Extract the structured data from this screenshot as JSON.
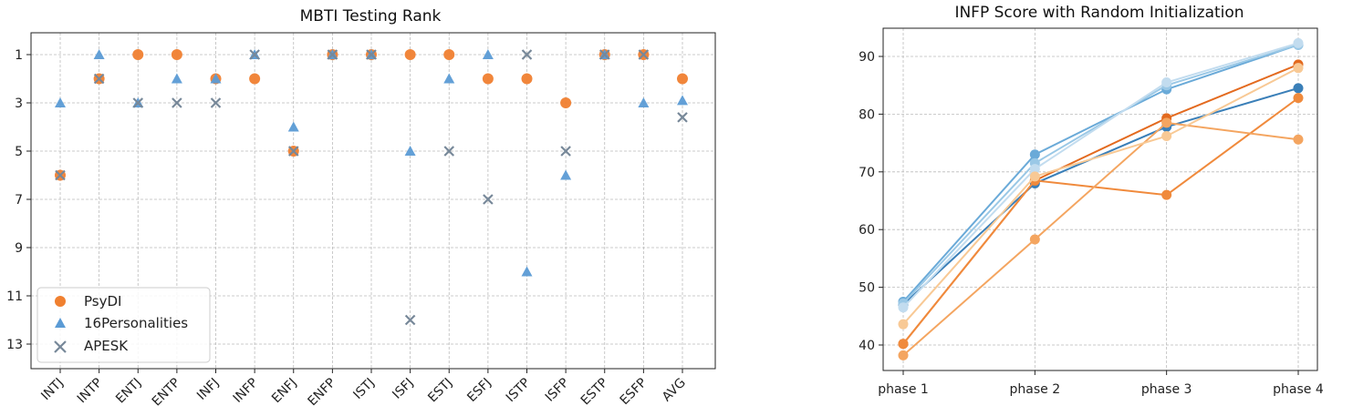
{
  "chart_data": [
    {
      "type": "scatter",
      "title": "MBTI Testing Rank",
      "categories": [
        "INTJ",
        "INTP",
        "ENTJ",
        "ENTP",
        "INFJ",
        "INFP",
        "ENFJ",
        "ENFP",
        "ISTJ",
        "ISFJ",
        "ESTJ",
        "ESFJ",
        "ISTP",
        "ISFP",
        "ESTP",
        "ESFP",
        "AVG"
      ],
      "yticks": [
        "1",
        "3",
        "5",
        "7",
        "9",
        "11",
        "13"
      ],
      "ylim": [
        14,
        0
      ],
      "y_inverted": true,
      "grid": true,
      "legend": "bottom-left",
      "series": [
        {
          "name": "PsyDI",
          "marker": "circle",
          "color": "#f08030",
          "values": [
            6,
            2,
            1,
            1,
            2,
            2,
            5,
            1,
            1,
            1,
            1,
            2,
            2,
            3,
            1,
            1,
            2
          ]
        },
        {
          "name": "16Personalities",
          "marker": "triangle",
          "color": "#5b9bd5",
          "values": [
            3,
            1,
            3,
            2,
            2,
            1,
            4,
            1,
            1,
            5,
            2,
            1,
            10,
            6,
            1,
            3,
            2.9
          ]
        },
        {
          "name": "APESK",
          "marker": "x",
          "color": "#778899",
          "values": [
            6,
            2,
            3,
            3,
            3,
            1,
            5,
            1,
            1,
            12,
            5,
            7,
            1,
            5,
            1,
            1,
            3.6
          ]
        }
      ]
    },
    {
      "type": "line",
      "title": "INFP Score with Random Initialization",
      "categories": [
        "phase 1",
        "phase 2",
        "phase 3",
        "phase 4"
      ],
      "yticks": [
        "40",
        "50",
        "60",
        "70",
        "80",
        "90"
      ],
      "ylim": [
        37.5,
        95
      ],
      "grid": true,
      "series": [
        {
          "color": "#3a7fb8",
          "values": [
            47.0,
            68.0,
            77.8,
            84.5
          ]
        },
        {
          "color": "#6aaad8",
          "values": [
            47.5,
            73.0,
            84.3,
            92.0
          ]
        },
        {
          "color": "#9ac8e6",
          "values": [
            47.2,
            71.5,
            85.0,
            92.0
          ]
        },
        {
          "color": "#c2dcef",
          "values": [
            46.5,
            70.5,
            85.5,
            92.3
          ]
        },
        {
          "color": "#e36a1f",
          "values": [
            40.2,
            68.5,
            79.3,
            88.6
          ]
        },
        {
          "color": "#f08a3c",
          "values": [
            40.2,
            68.5,
            66.0,
            82.8
          ]
        },
        {
          "color": "#f4a560",
          "values": [
            38.2,
            58.3,
            78.5,
            75.6
          ]
        },
        {
          "color": "#f8c995",
          "values": [
            43.6,
            69.2,
            76.2,
            88.0
          ]
        }
      ]
    }
  ]
}
